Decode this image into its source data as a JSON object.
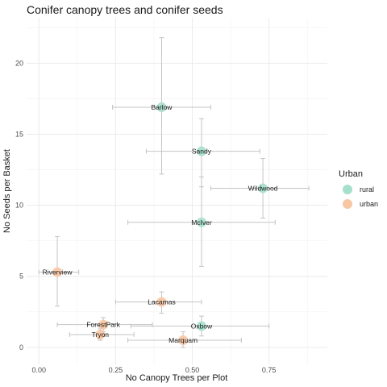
{
  "chart_data": {
    "type": "scatter",
    "title": "Conifer canopy trees and conifer seeds",
    "xlabel": "No Canopy Trees per Plot",
    "ylabel": "No Seeds per Basket",
    "xlim": [
      -0.04,
      0.94
    ],
    "ylim": [
      -1.2,
      23.2
    ],
    "x_ticks": [
      "0.00",
      "0.25",
      "0.50",
      "0.75"
    ],
    "y_ticks": [
      "0",
      "5",
      "10",
      "15",
      "20"
    ],
    "grid": true,
    "legend": {
      "title": "Urban",
      "placement": "right",
      "entries": [
        {
          "label": "rural",
          "color": "#a6dfcc"
        },
        {
          "label": "urban",
          "color": "#f7c7a3"
        }
      ]
    },
    "error_bar_color": "#c4c4c4",
    "points": [
      {
        "label": "Barlow",
        "group": "rural",
        "x": 0.4,
        "y": 16.9,
        "x_low": 0.24,
        "x_high": 0.56,
        "y_low": 12.2,
        "y_high": 21.8
      },
      {
        "label": "Sandy",
        "group": "rural",
        "x": 0.53,
        "y": 13.8,
        "x_low": 0.35,
        "x_high": 0.72,
        "y_low": 11.3,
        "y_high": 16.1
      },
      {
        "label": "Wildwood",
        "group": "rural",
        "x": 0.73,
        "y": 11.2,
        "x_low": 0.56,
        "x_high": 0.88,
        "y_low": 9.1,
        "y_high": 13.3
      },
      {
        "label": "McIver",
        "group": "rural",
        "x": 0.53,
        "y": 8.8,
        "x_low": 0.29,
        "x_high": 0.77,
        "y_low": 5.7,
        "y_high": 12.0
      },
      {
        "label": "Riverview",
        "group": "urban",
        "x": 0.06,
        "y": 5.3,
        "x_low": 0.0,
        "x_high": 0.13,
        "y_low": 2.9,
        "y_high": 7.8
      },
      {
        "label": "Lacamas",
        "group": "urban",
        "x": 0.4,
        "y": 3.2,
        "x_low": 0.25,
        "x_high": 0.53,
        "y_low": 2.4,
        "y_high": 3.9
      },
      {
        "label": "ForestPark",
        "group": "urban",
        "x": 0.21,
        "y": 1.6,
        "x_low": 0.06,
        "x_high": 0.37,
        "y_low": 1.1,
        "y_high": 2.1
      },
      {
        "label": "Oxbow",
        "group": "rural",
        "x": 0.53,
        "y": 1.5,
        "x_low": 0.3,
        "x_high": 0.75,
        "y_low": 0.8,
        "y_high": 2.2
      },
      {
        "label": "Tryon",
        "group": "urban",
        "x": 0.2,
        "y": 0.9,
        "x_low": 0.1,
        "x_high": 0.31,
        "y_low": 0.5,
        "y_high": 1.3
      },
      {
        "label": "Marquam",
        "group": "urban",
        "x": 0.47,
        "y": 0.5,
        "x_low": 0.29,
        "x_high": 0.66,
        "y_low": 0.0,
        "y_high": 1.1
      }
    ]
  }
}
